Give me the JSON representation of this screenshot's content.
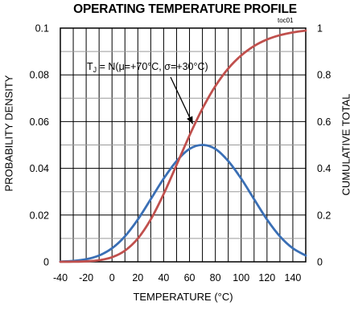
{
  "chart_data": {
    "type": "line",
    "title": "OPERATING TEMPERATURE PROFILE",
    "code": "toc01",
    "xlabel": "TEMPERATURE (°C)",
    "ylabel": "PROBABILITY DENSITY",
    "y2label": "CUMULATIVE TOTAL",
    "xlim": [
      -40,
      150
    ],
    "ylim": [
      0,
      0.1
    ],
    "y2lim": [
      0,
      1
    ],
    "x_ticks": [
      -40,
      -20,
      0,
      20,
      40,
      60,
      80,
      100,
      120,
      140
    ],
    "x_tick_labels": [
      "-40",
      "-20",
      "0",
      "20",
      "40",
      "60",
      "80",
      "100",
      "120",
      "140"
    ],
    "y_ticks": [
      0,
      0.02,
      0.04,
      0.06,
      0.08,
      0.1
    ],
    "y_tick_labels": [
      "0",
      "0.02",
      "0.04",
      "0.06",
      "0.08",
      "0.1"
    ],
    "y2_ticks": [
      0,
      0.2,
      0.4,
      0.6,
      0.8,
      1
    ],
    "y2_tick_labels": [
      "0",
      "0.2",
      "0.4",
      "0.6",
      "0.8",
      "1"
    ],
    "grid": true,
    "x": [
      -40,
      -30,
      -20,
      -10,
      0,
      10,
      20,
      30,
      40,
      50,
      60,
      70,
      80,
      90,
      100,
      110,
      120,
      130,
      140,
      150
    ],
    "series": [
      {
        "axis": "left",
        "color": "#3a6fb5",
        "values": [
          0.0001,
          0.0004,
          0.0011,
          0.0027,
          0.0058,
          0.0109,
          0.0181,
          0.0268,
          0.0356,
          0.0431,
          0.0483,
          0.05,
          0.0483,
          0.0431,
          0.0356,
          0.0268,
          0.0181,
          0.0109,
          0.0058,
          0.0027
        ]
      },
      {
        "axis": "right",
        "color": "#c0504d",
        "values": [
          0.0001,
          0.0005,
          0.002,
          0.0068,
          0.0196,
          0.0478,
          0.0996,
          0.1814,
          0.2902,
          0.4147,
          0.5406,
          0.6554,
          0.7517,
          0.8271,
          0.8829,
          0.9234,
          0.9513,
          0.9697,
          0.9816,
          0.9894
        ]
      }
    ],
    "annotation": {
      "text_prefix": "T",
      "text_sub": "J",
      "text_rest": " = N(μ=+70°C, σ=+30°C)",
      "arrow_to_x": 65
    }
  }
}
